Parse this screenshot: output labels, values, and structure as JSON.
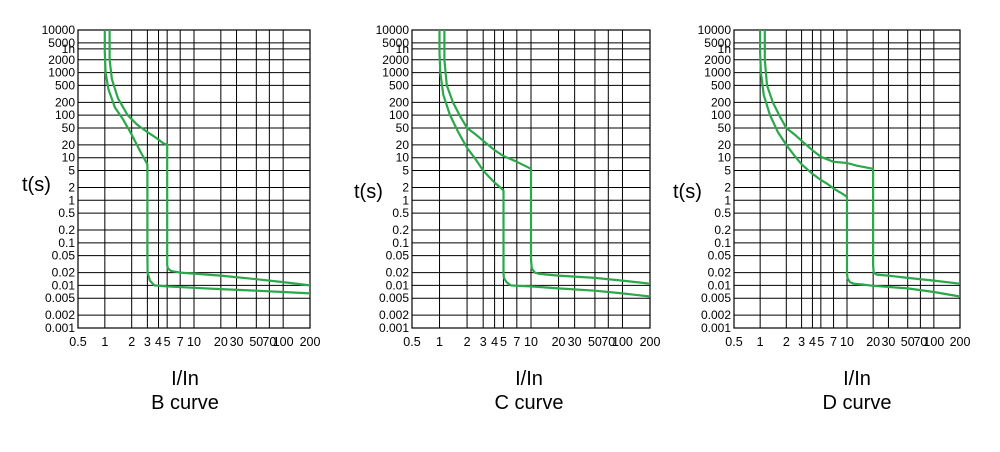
{
  "chart_data": [
    {
      "type": "line",
      "title": "B curve",
      "xlabel": "I/In",
      "ylabel": "t(s)",
      "x_scale": "log",
      "y_scale": "log",
      "xlim": [
        0.5,
        200
      ],
      "ylim": [
        0.001,
        10000
      ],
      "x_ticks": [
        "0.5",
        "1",
        "2",
        "3",
        "4",
        "5",
        "7",
        "10",
        "20",
        "30",
        "50",
        "70",
        "100",
        "200"
      ],
      "y_ticks": [
        "10000",
        "5000",
        "1h",
        "2000",
        "1000",
        "500",
        "200",
        "100",
        "50",
        "20",
        "10",
        "5",
        "2",
        "1",
        "0.5",
        "0.2",
        "0.1",
        "0.05",
        "0.02",
        "0.01",
        "0.005",
        "0.002",
        "0.001"
      ],
      "grid": true,
      "series": [
        {
          "x": [
            1.0,
            1.0,
            1.02,
            1.1,
            1.3,
            1.6,
            2.0,
            2.5,
            3.0,
            3.0,
            3.02,
            3.2,
            3.6,
            5,
            10,
            20,
            50,
            100,
            200
          ],
          "y": [
            10000,
            3000,
            1000,
            400,
            150,
            80,
            35,
            14,
            7,
            0.05,
            0.02,
            0.013,
            0.01,
            0.0095,
            0.0088,
            0.0082,
            0.0075,
            0.007,
            0.0065
          ]
        },
        {
          "x": [
            1.13,
            1.13,
            1.2,
            1.4,
            1.8,
            2.3,
            3.0,
            3.7,
            4.5,
            5.0,
            5.0,
            5.1,
            5.5,
            7,
            10,
            20,
            50,
            100,
            200
          ],
          "y": [
            10000,
            2000,
            700,
            250,
            100,
            60,
            40,
            30,
            22,
            20,
            0.03,
            0.025,
            0.022,
            0.02,
            0.019,
            0.017,
            0.014,
            0.012,
            0.01
          ]
        }
      ]
    },
    {
      "type": "line",
      "title": "C curve",
      "xlabel": "I/In",
      "ylabel": "t(s)",
      "x_scale": "log",
      "y_scale": "log",
      "xlim": [
        0.5,
        200
      ],
      "ylim": [
        0.001,
        10000
      ],
      "x_ticks": [
        "0.5",
        "1",
        "2",
        "3",
        "4",
        "5",
        "7",
        "10",
        "20",
        "30",
        "50",
        "70",
        "100",
        "200"
      ],
      "y_ticks": [
        "10000",
        "5000",
        "1h",
        "2000",
        "1000",
        "500",
        "200",
        "100",
        "50",
        "20",
        "10",
        "5",
        "2",
        "1",
        "0.5",
        "0.2",
        "0.1",
        "0.05",
        "0.02",
        "0.01",
        "0.005",
        "0.002",
        "0.001"
      ],
      "grid": true,
      "series": [
        {
          "x": [
            1.0,
            1.0,
            1.02,
            1.1,
            1.3,
            1.6,
            2.0,
            2.5,
            3.0,
            3.5,
            4.0,
            4.5,
            5.0,
            5.0,
            5.05,
            5.4,
            6.0,
            7,
            10,
            20,
            50,
            100,
            200
          ],
          "y": [
            10000,
            3000,
            1000,
            300,
            100,
            40,
            17,
            9,
            5,
            3.5,
            2.6,
            2.1,
            1.7,
            0.02,
            0.015,
            0.012,
            0.01,
            0.0098,
            0.0095,
            0.0085,
            0.0075,
            0.0065,
            0.0055
          ]
        },
        {
          "x": [
            1.13,
            1.13,
            1.2,
            1.4,
            1.7,
            2.0,
            2.5,
            3.0,
            4.0,
            5.0,
            7.0,
            10.0,
            10.0,
            10.2,
            11.0,
            12.0,
            15,
            20,
            50,
            100,
            200
          ],
          "y": [
            10000,
            2000,
            500,
            200,
            90,
            50,
            35,
            25,
            15,
            11,
            8,
            5.5,
            0.04,
            0.025,
            0.02,
            0.019,
            0.018,
            0.017,
            0.015,
            0.013,
            0.011
          ]
        }
      ]
    },
    {
      "type": "line",
      "title": "D curve",
      "xlabel": "I/In",
      "ylabel": "t(s)",
      "x_scale": "log",
      "y_scale": "log",
      "xlim": [
        0.5,
        200
      ],
      "ylim": [
        0.001,
        10000
      ],
      "x_ticks": [
        "0.5",
        "1",
        "2",
        "3",
        "4",
        "5",
        "7",
        "10",
        "20",
        "30",
        "50",
        "70",
        "100",
        "200"
      ],
      "y_ticks": [
        "10000",
        "5000",
        "1h",
        "2000",
        "1000",
        "500",
        "200",
        "100",
        "50",
        "20",
        "10",
        "5",
        "2",
        "1",
        "0.5",
        "0.2",
        "0.1",
        "0.05",
        "0.02",
        "0.01",
        "0.005",
        "0.002",
        "0.001"
      ],
      "grid": true,
      "series": [
        {
          "x": [
            1.0,
            1.0,
            1.02,
            1.1,
            1.3,
            1.6,
            2.0,
            2.5,
            3.0,
            4.0,
            5.0,
            6.0,
            7.0,
            8.0,
            9.0,
            10.0,
            10.0,
            10.1,
            10.8,
            12.0,
            15,
            20,
            50,
            100,
            200
          ],
          "y": [
            10000,
            3000,
            1000,
            300,
            100,
            40,
            20,
            11,
            7,
            4.2,
            3,
            2.4,
            1.9,
            1.6,
            1.4,
            1.2,
            0.02,
            0.015,
            0.012,
            0.011,
            0.0105,
            0.0098,
            0.0085,
            0.007,
            0.0055
          ]
        },
        {
          "x": [
            1.13,
            1.13,
            1.2,
            1.4,
            1.7,
            2.0,
            2.5,
            3.0,
            4.0,
            5.0,
            7.0,
            10.0,
            13.0,
            16.0,
            20.0,
            20.0,
            20.3,
            22.0,
            30,
            50,
            100,
            200
          ],
          "y": [
            10000,
            2000,
            500,
            200,
            90,
            50,
            35,
            25,
            15,
            10.5,
            8,
            7.5,
            6.5,
            6.0,
            5.5,
            0.03,
            0.02,
            0.018,
            0.017,
            0.015,
            0.013,
            0.011
          ]
        }
      ]
    }
  ],
  "colors": {
    "grid": "#000000",
    "curve": "#2aa84a"
  }
}
